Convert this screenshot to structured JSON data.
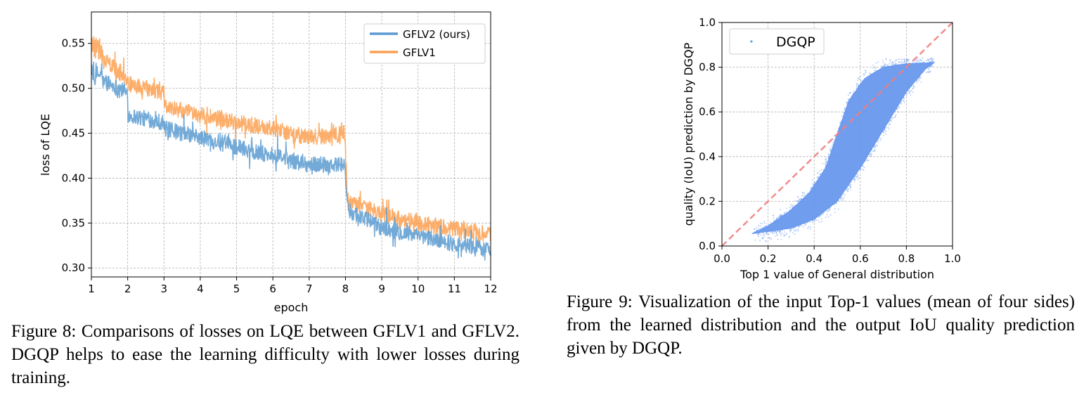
{
  "figures": {
    "left_caption": "Figure 8: Comparisons of losses on LQE between GFLV1 and GFLV2. DGQP helps to ease the learning difficulty with lower losses during training.",
    "right_caption": "Figure 9: Visualization of the input Top-1 values (mean of four sides) from the learned distribution and the output IoU quality prediction given by DGQP."
  },
  "chart_data": [
    {
      "type": "line",
      "xlabel": "epoch",
      "ylabel": "loss of LQE",
      "xlim": [
        1,
        12
      ],
      "ylim": [
        0.29,
        0.585
      ],
      "xticks": [
        1,
        2,
        3,
        4,
        5,
        6,
        7,
        8,
        9,
        10,
        11,
        12
      ],
      "yticks": [
        0.3,
        0.35,
        0.4,
        0.45,
        0.5,
        0.55
      ],
      "ytick_labels": [
        "0.30",
        "0.35",
        "0.40",
        "0.45",
        "0.50",
        "0.55"
      ],
      "grid": true,
      "legend": "top-right",
      "x": [
        1,
        2,
        2.01,
        3,
        3.01,
        4,
        5,
        6,
        7,
        7.99,
        8.05,
        9,
        10,
        11,
        12
      ],
      "series": [
        {
          "name": "GFLV2 (ours)",
          "color": "#5b9bd0",
          "values": [
            0.515,
            0.495,
            0.47,
            0.462,
            0.455,
            0.445,
            0.435,
            0.425,
            0.415,
            0.415,
            0.365,
            0.345,
            0.335,
            0.327,
            0.32
          ]
        },
        {
          "name": "GFLV1",
          "color": "#fca050",
          "values": [
            0.545,
            0.51,
            0.505,
            0.495,
            0.48,
            0.47,
            0.462,
            0.455,
            0.445,
            0.45,
            0.375,
            0.36,
            0.35,
            0.343,
            0.338
          ]
        }
      ]
    },
    {
      "type": "scatter",
      "xlabel": "Top 1 value of General distribution",
      "ylabel": "quality (IoU) prediction by DGQP",
      "xlim": [
        0.0,
        1.0
      ],
      "ylim": [
        0.0,
        1.0
      ],
      "xticks": [
        0.0,
        0.2,
        0.4,
        0.6,
        0.8,
        1.0
      ],
      "yticks": [
        0.0,
        0.2,
        0.4,
        0.6,
        0.8,
        1.0
      ],
      "xtick_labels": [
        "0.0",
        "0.2",
        "0.4",
        "0.6",
        "0.8",
        "1.0"
      ],
      "ytick_labels": [
        "0.0",
        "0.2",
        "0.4",
        "0.6",
        "0.8",
        "1.0"
      ],
      "grid": true,
      "legend": "top-left",
      "series": [
        {
          "name": "DGQP",
          "color": "#6495ed",
          "lower_edge": [
            [
              0.13,
              0.055
            ],
            [
              0.3,
              0.08
            ],
            [
              0.4,
              0.12
            ],
            [
              0.5,
              0.2
            ],
            [
              0.6,
              0.35
            ],
            [
              0.7,
              0.52
            ],
            [
              0.8,
              0.69
            ],
            [
              0.88,
              0.79
            ],
            [
              0.92,
              0.82
            ]
          ],
          "upper_edge": [
            [
              0.92,
              0.82
            ],
            [
              0.8,
              0.815
            ],
            [
              0.7,
              0.8
            ],
            [
              0.62,
              0.75
            ],
            [
              0.55,
              0.65
            ],
            [
              0.5,
              0.5
            ],
            [
              0.45,
              0.35
            ],
            [
              0.38,
              0.24
            ],
            [
              0.3,
              0.16
            ],
            [
              0.2,
              0.09
            ],
            [
              0.13,
              0.055
            ]
          ]
        },
        {
          "name": "",
          "color": "#f08080",
          "x": [
            0.0,
            1.0
          ],
          "values": [
            0.0,
            1.0
          ]
        }
      ]
    }
  ]
}
